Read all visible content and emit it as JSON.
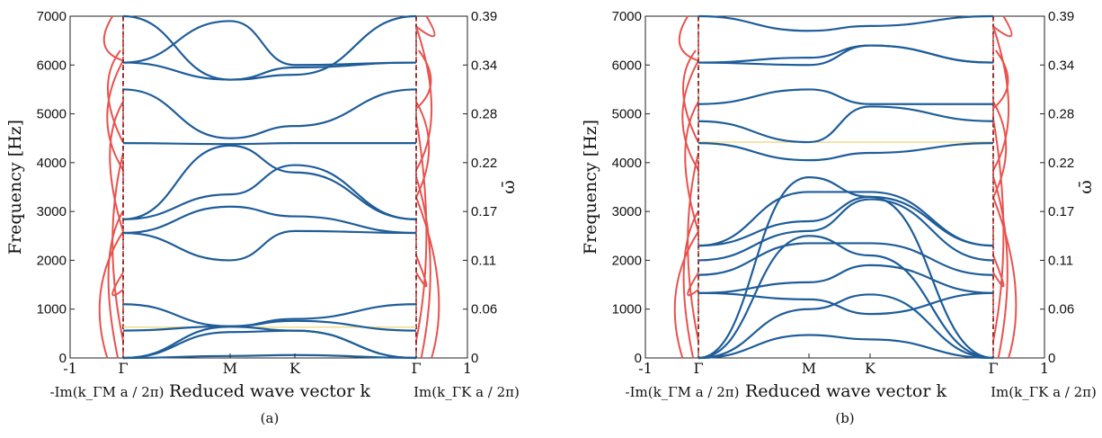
{
  "chart_data": [
    {
      "panel": "(a)",
      "type": "line",
      "y_axis_left_label": "Frequency [Hz]",
      "y_axis_right_label": "ω̄",
      "y_range_hz": [
        0,
        7000
      ],
      "yticks_left": [
        "0",
        "1000",
        "2000",
        "3000",
        "4000",
        "5000",
        "6000",
        "7000"
      ],
      "yticks_right": [
        "0",
        "0.06",
        "0.11",
        "0.17",
        "0.22",
        "0.28",
        "0.34",
        "0.39"
      ],
      "x_symbols": [
        "-1",
        "Γ",
        "M",
        "K",
        "Γ",
        "1"
      ],
      "xlabel_left": "-Im(k_ΓM a / 2π)",
      "xlabel_center": "Reduced wave vector k",
      "xlabel_right": "Im(k_ΓK a / 2π)",
      "path_points": [
        "Γ",
        "M",
        "K",
        "Γ"
      ],
      "band_gap_marker_hz": 630,
      "flat_band_hz": 4400,
      "real_band_series": [
        {
          "values": [
            0,
            40,
            60,
            0
          ]
        },
        {
          "values": [
            0,
            530,
            560,
            0
          ]
        },
        {
          "values": [
            0,
            640,
            560,
            0
          ]
        },
        {
          "values": [
            560,
            650,
            760,
            560
          ]
        },
        {
          "values": [
            1100,
            650,
            800,
            1100
          ]
        },
        {
          "values": [
            2560,
            2000,
            2600,
            2560
          ]
        },
        {
          "values": [
            2560,
            3100,
            2900,
            2560
          ]
        },
        {
          "values": [
            2840,
            3350,
            3950,
            2840
          ]
        },
        {
          "values": [
            2840,
            4350,
            3800,
            2840
          ]
        },
        {
          "values": [
            4400,
            4380,
            4400,
            4400
          ]
        },
        {
          "values": [
            5500,
            4500,
            4750,
            5500
          ]
        },
        {
          "values": [
            6050,
            5700,
            5950,
            6050
          ]
        },
        {
          "values": [
            7000,
            5700,
            5800,
            7000
          ]
        },
        {
          "values": [
            6050,
            6900,
            6000,
            6050
          ]
        }
      ],
      "series_colors": {
        "real": "#1f5d99",
        "imaginary": "#e8524e",
        "gap_marker": "#f0dc8c"
      }
    },
    {
      "panel": "(b)",
      "type": "line",
      "y_axis_left_label": "Frequency [Hz]",
      "y_axis_right_label": "ω̄",
      "y_range_hz": [
        0,
        7000
      ],
      "yticks_left": [
        "0",
        "1000",
        "2000",
        "3000",
        "4000",
        "5000",
        "6000",
        "7000"
      ],
      "yticks_right": [
        "0",
        "0.06",
        "0.11",
        "0.17",
        "0.22",
        "0.28",
        "0.34",
        "0.39"
      ],
      "x_symbols": [
        "-1",
        "Γ",
        "M",
        "K",
        "Γ",
        "1"
      ],
      "xlabel_left": "-Im(k_ΓM a / 2π)",
      "xlabel_center": "Reduced wave vector k",
      "xlabel_right": "Im(k_ΓK a / 2π)",
      "path_points": [
        "Γ",
        "M",
        "K",
        "Γ"
      ],
      "band_gap_marker_hz": 4420,
      "real_band_series": [
        {
          "values": [
            0,
            470,
            380,
            0
          ]
        },
        {
          "values": [
            0,
            1000,
            1300,
            0
          ]
        },
        {
          "values": [
            0,
            2500,
            2100,
            0
          ]
        },
        {
          "values": [
            0,
            3700,
            3300,
            0
          ]
        },
        {
          "values": [
            1330,
            1200,
            900,
            1330
          ]
        },
        {
          "values": [
            1330,
            1550,
            1900,
            1330
          ]
        },
        {
          "values": [
            1700,
            2350,
            2350,
            1700
          ]
        },
        {
          "values": [
            2000,
            2600,
            3250,
            2000
          ]
        },
        {
          "values": [
            2300,
            2800,
            3300,
            2300
          ]
        },
        {
          "values": [
            2300,
            3400,
            3400,
            2300
          ]
        },
        {
          "values": [
            4400,
            4050,
            4200,
            4400
          ]
        },
        {
          "values": [
            4850,
            4420,
            5150,
            4850
          ]
        },
        {
          "values": [
            5200,
            5500,
            5200,
            5200
          ]
        },
        {
          "values": [
            6050,
            6000,
            6400,
            6050
          ]
        },
        {
          "values": [
            6050,
            6150,
            6400,
            6050
          ]
        },
        {
          "values": [
            7000,
            6700,
            6800,
            7000
          ]
        }
      ],
      "series_colors": {
        "real": "#1f5d99",
        "imaginary": "#e8524e",
        "gap_marker": "#f0dc8c"
      }
    }
  ],
  "captions": [
    "(a)",
    "(b)"
  ]
}
